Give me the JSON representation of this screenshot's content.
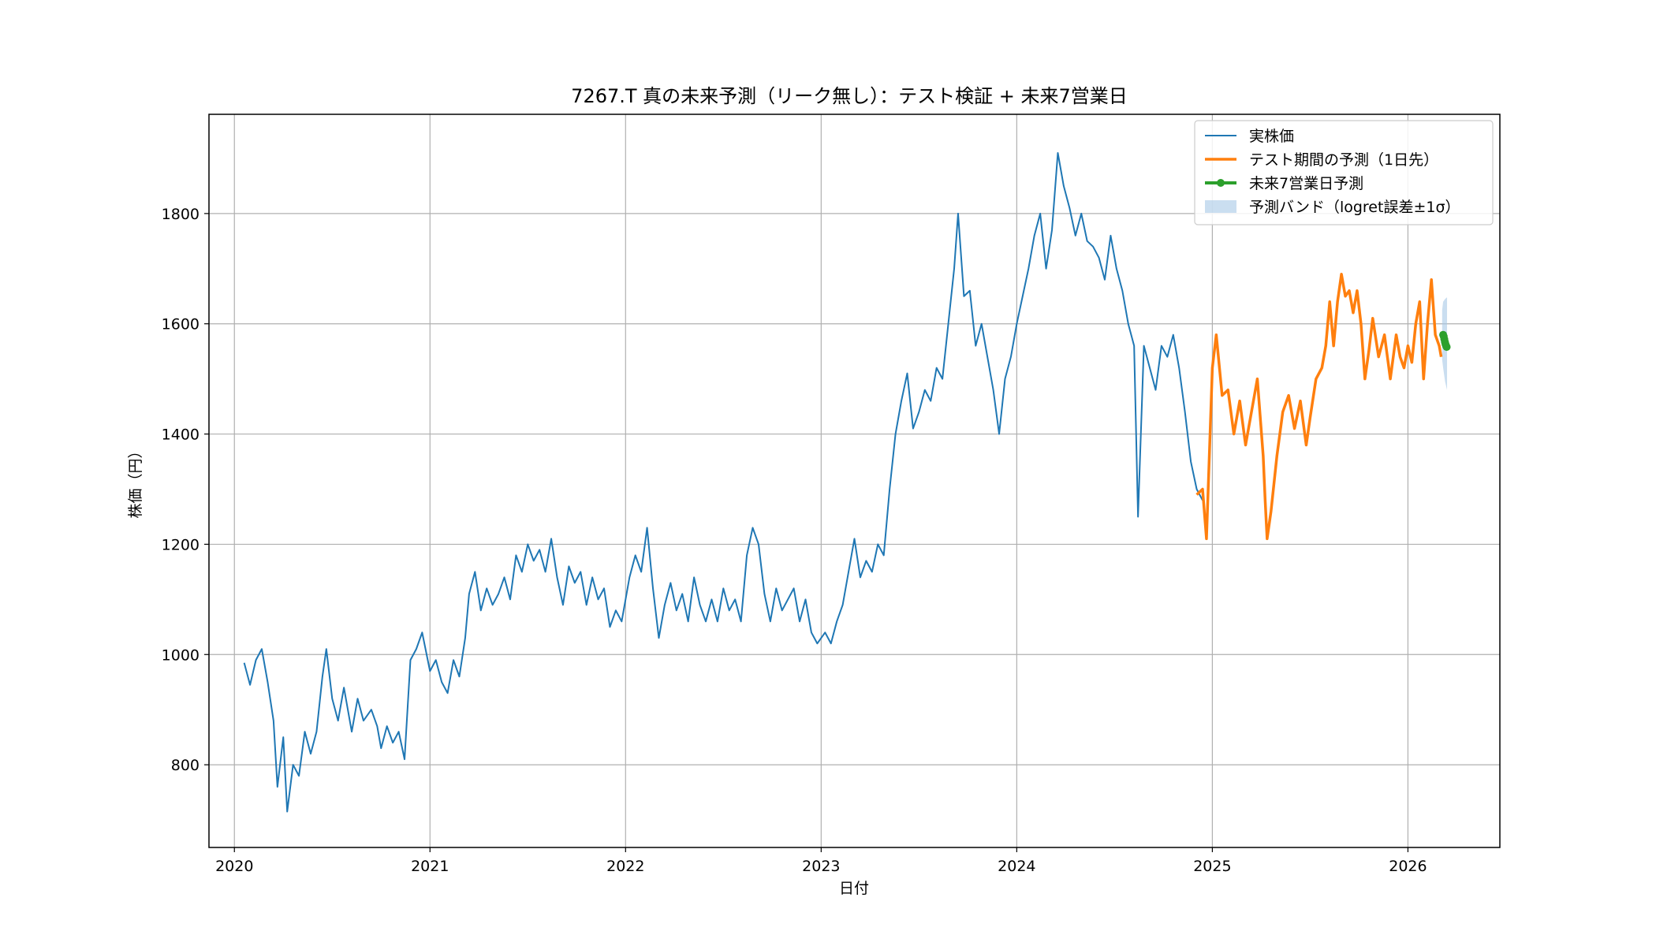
{
  "chart_data": {
    "type": "line",
    "title": "7267.T 真の未来予測（リーク無し）：テスト検証 + 未来7営業日",
    "xlabel": "日付",
    "ylabel": "株価（円）",
    "xlim": [
      2019.87,
      2026.47
    ],
    "ylim": [
      650,
      1980
    ],
    "x_ticks": [
      2020,
      2021,
      2022,
      2023,
      2024,
      2025,
      2026
    ],
    "x_tick_labels": [
      "2020",
      "2021",
      "2022",
      "2023",
      "2024",
      "2025",
      "2026"
    ],
    "y_ticks": [
      800,
      1000,
      1200,
      1400,
      1600,
      1800
    ],
    "y_tick_labels": [
      "800",
      "1000",
      "1200",
      "1400",
      "1600",
      "1800"
    ],
    "grid": true,
    "legend_position": "top-right",
    "series": [
      {
        "name": "実株価",
        "color": "#1f77b4",
        "points": [
          [
            2020.05,
            985
          ],
          [
            2020.08,
            945
          ],
          [
            2020.11,
            990
          ],
          [
            2020.14,
            1010
          ],
          [
            2020.17,
            950
          ],
          [
            2020.2,
            880
          ],
          [
            2020.22,
            760
          ],
          [
            2020.25,
            850
          ],
          [
            2020.27,
            715
          ],
          [
            2020.3,
            800
          ],
          [
            2020.33,
            780
          ],
          [
            2020.36,
            860
          ],
          [
            2020.39,
            820
          ],
          [
            2020.42,
            860
          ],
          [
            2020.45,
            960
          ],
          [
            2020.47,
            1010
          ],
          [
            2020.5,
            920
          ],
          [
            2020.53,
            880
          ],
          [
            2020.56,
            940
          ],
          [
            2020.6,
            860
          ],
          [
            2020.63,
            920
          ],
          [
            2020.66,
            880
          ],
          [
            2020.7,
            900
          ],
          [
            2020.73,
            870
          ],
          [
            2020.75,
            830
          ],
          [
            2020.78,
            870
          ],
          [
            2020.81,
            840
          ],
          [
            2020.84,
            860
          ],
          [
            2020.87,
            810
          ],
          [
            2020.9,
            990
          ],
          [
            2020.93,
            1010
          ],
          [
            2020.96,
            1040
          ],
          [
            2021.0,
            970
          ],
          [
            2021.03,
            990
          ],
          [
            2021.06,
            950
          ],
          [
            2021.09,
            930
          ],
          [
            2021.12,
            990
          ],
          [
            2021.15,
            960
          ],
          [
            2021.18,
            1030
          ],
          [
            2021.2,
            1110
          ],
          [
            2021.23,
            1150
          ],
          [
            2021.26,
            1080
          ],
          [
            2021.29,
            1120
          ],
          [
            2021.32,
            1090
          ],
          [
            2021.35,
            1110
          ],
          [
            2021.38,
            1140
          ],
          [
            2021.41,
            1100
          ],
          [
            2021.44,
            1180
          ],
          [
            2021.47,
            1150
          ],
          [
            2021.5,
            1200
          ],
          [
            2021.53,
            1170
          ],
          [
            2021.56,
            1190
          ],
          [
            2021.59,
            1150
          ],
          [
            2021.62,
            1210
          ],
          [
            2021.65,
            1140
          ],
          [
            2021.68,
            1090
          ],
          [
            2021.71,
            1160
          ],
          [
            2021.74,
            1130
          ],
          [
            2021.77,
            1150
          ],
          [
            2021.8,
            1090
          ],
          [
            2021.83,
            1140
          ],
          [
            2021.86,
            1100
          ],
          [
            2021.89,
            1120
          ],
          [
            2021.92,
            1050
          ],
          [
            2021.95,
            1080
          ],
          [
            2021.98,
            1060
          ],
          [
            2022.02,
            1140
          ],
          [
            2022.05,
            1180
          ],
          [
            2022.08,
            1150
          ],
          [
            2022.11,
            1230
          ],
          [
            2022.14,
            1120
          ],
          [
            2022.17,
            1030
          ],
          [
            2022.2,
            1090
          ],
          [
            2022.23,
            1130
          ],
          [
            2022.26,
            1080
          ],
          [
            2022.29,
            1110
          ],
          [
            2022.32,
            1060
          ],
          [
            2022.35,
            1140
          ],
          [
            2022.38,
            1090
          ],
          [
            2022.41,
            1060
          ],
          [
            2022.44,
            1100
          ],
          [
            2022.47,
            1060
          ],
          [
            2022.5,
            1120
          ],
          [
            2022.53,
            1080
          ],
          [
            2022.56,
            1100
          ],
          [
            2022.59,
            1060
          ],
          [
            2022.62,
            1180
          ],
          [
            2022.65,
            1230
          ],
          [
            2022.68,
            1200
          ],
          [
            2022.71,
            1110
          ],
          [
            2022.74,
            1060
          ],
          [
            2022.77,
            1120
          ],
          [
            2022.8,
            1080
          ],
          [
            2022.83,
            1100
          ],
          [
            2022.86,
            1120
          ],
          [
            2022.89,
            1060
          ],
          [
            2022.92,
            1100
          ],
          [
            2022.95,
            1040
          ],
          [
            2022.98,
            1020
          ],
          [
            2023.02,
            1040
          ],
          [
            2023.05,
            1020
          ],
          [
            2023.08,
            1060
          ],
          [
            2023.11,
            1090
          ],
          [
            2023.14,
            1150
          ],
          [
            2023.17,
            1210
          ],
          [
            2023.2,
            1140
          ],
          [
            2023.23,
            1170
          ],
          [
            2023.26,
            1150
          ],
          [
            2023.29,
            1200
          ],
          [
            2023.32,
            1180
          ],
          [
            2023.35,
            1300
          ],
          [
            2023.38,
            1400
          ],
          [
            2023.41,
            1460
          ],
          [
            2023.44,
            1510
          ],
          [
            2023.47,
            1410
          ],
          [
            2023.5,
            1440
          ],
          [
            2023.53,
            1480
          ],
          [
            2023.56,
            1460
          ],
          [
            2023.59,
            1520
          ],
          [
            2023.62,
            1500
          ],
          [
            2023.65,
            1600
          ],
          [
            2023.68,
            1700
          ],
          [
            2023.7,
            1800
          ],
          [
            2023.73,
            1650
          ],
          [
            2023.76,
            1660
          ],
          [
            2023.79,
            1560
          ],
          [
            2023.82,
            1600
          ],
          [
            2023.85,
            1540
          ],
          [
            2023.88,
            1480
          ],
          [
            2023.91,
            1400
          ],
          [
            2023.94,
            1500
          ],
          [
            2023.97,
            1540
          ],
          [
            2024.0,
            1600
          ],
          [
            2024.03,
            1650
          ],
          [
            2024.06,
            1700
          ],
          [
            2024.09,
            1760
          ],
          [
            2024.12,
            1800
          ],
          [
            2024.15,
            1700
          ],
          [
            2024.18,
            1770
          ],
          [
            2024.21,
            1910
          ],
          [
            2024.24,
            1850
          ],
          [
            2024.27,
            1810
          ],
          [
            2024.3,
            1760
          ],
          [
            2024.33,
            1800
          ],
          [
            2024.36,
            1750
          ],
          [
            2024.39,
            1740
          ],
          [
            2024.42,
            1720
          ],
          [
            2024.45,
            1680
          ],
          [
            2024.48,
            1760
          ],
          [
            2024.51,
            1700
          ],
          [
            2024.54,
            1660
          ],
          [
            2024.57,
            1600
          ],
          [
            2024.6,
            1560
          ],
          [
            2024.62,
            1250
          ],
          [
            2024.65,
            1560
          ],
          [
            2024.68,
            1520
          ],
          [
            2024.71,
            1480
          ],
          [
            2024.74,
            1560
          ],
          [
            2024.77,
            1540
          ],
          [
            2024.8,
            1580
          ],
          [
            2024.83,
            1520
          ],
          [
            2024.86,
            1440
          ],
          [
            2024.89,
            1350
          ],
          [
            2024.92,
            1300
          ],
          [
            2024.95,
            1280
          ]
        ]
      },
      {
        "name": "テスト期間の予測（1日先）",
        "color": "#ff7f0e",
        "points": [
          [
            2024.92,
            1290
          ],
          [
            2024.95,
            1300
          ],
          [
            2024.97,
            1210
          ],
          [
            2025.0,
            1520
          ],
          [
            2025.02,
            1580
          ],
          [
            2025.05,
            1470
          ],
          [
            2025.08,
            1480
          ],
          [
            2025.11,
            1400
          ],
          [
            2025.14,
            1460
          ],
          [
            2025.17,
            1380
          ],
          [
            2025.2,
            1440
          ],
          [
            2025.23,
            1500
          ],
          [
            2025.26,
            1360
          ],
          [
            2025.27,
            1280
          ],
          [
            2025.28,
            1210
          ],
          [
            2025.3,
            1260
          ],
          [
            2025.33,
            1360
          ],
          [
            2025.36,
            1440
          ],
          [
            2025.39,
            1470
          ],
          [
            2025.42,
            1410
          ],
          [
            2025.45,
            1460
          ],
          [
            2025.48,
            1380
          ],
          [
            2025.5,
            1430
          ],
          [
            2025.53,
            1500
          ],
          [
            2025.56,
            1520
          ],
          [
            2025.58,
            1560
          ],
          [
            2025.6,
            1640
          ],
          [
            2025.62,
            1560
          ],
          [
            2025.64,
            1640
          ],
          [
            2025.66,
            1690
          ],
          [
            2025.68,
            1650
          ],
          [
            2025.7,
            1660
          ],
          [
            2025.72,
            1620
          ],
          [
            2025.74,
            1660
          ],
          [
            2025.76,
            1600
          ],
          [
            2025.78,
            1500
          ],
          [
            2025.8,
            1550
          ],
          [
            2025.82,
            1610
          ],
          [
            2025.85,
            1540
          ],
          [
            2025.88,
            1580
          ],
          [
            2025.91,
            1500
          ],
          [
            2025.94,
            1580
          ],
          [
            2025.96,
            1540
          ],
          [
            2025.98,
            1520
          ],
          [
            2026.0,
            1560
          ],
          [
            2026.02,
            1530
          ],
          [
            2026.04,
            1600
          ],
          [
            2026.06,
            1640
          ],
          [
            2026.08,
            1500
          ],
          [
            2026.1,
            1600
          ],
          [
            2026.12,
            1680
          ],
          [
            2026.14,
            1580
          ],
          [
            2026.16,
            1560
          ],
          [
            2026.17,
            1540
          ]
        ]
      },
      {
        "name": "未来7営業日予測",
        "color": "#2ca02c",
        "points": [
          [
            2026.18,
            1580
          ],
          [
            2026.183,
            1577
          ],
          [
            2026.186,
            1572
          ],
          [
            2026.189,
            1567
          ],
          [
            2026.192,
            1563
          ],
          [
            2026.195,
            1560
          ],
          [
            2026.198,
            1558
          ]
        ]
      }
    ],
    "band": {
      "name": "予測バンド（logret誤差±1σ）",
      "color": "#a6c8e6",
      "points": [
        [
          2026.175,
          1535,
          1625
        ],
        [
          2026.18,
          1520,
          1640
        ],
        [
          2026.19,
          1495,
          1645
        ],
        [
          2026.2,
          1480,
          1648
        ]
      ]
    }
  }
}
